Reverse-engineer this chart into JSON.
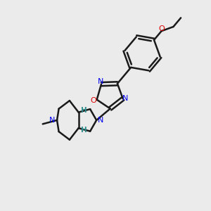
{
  "background_color": "#ebebeb",
  "bond_color": "#1a1a1a",
  "nitrogen_color": "#0000ee",
  "oxygen_color": "#dd0000",
  "stereo_h_color": "#2e8b8b",
  "line_width": 1.8,
  "figsize": [
    3.0,
    3.0
  ],
  "dpi": 100,
  "xlim": [
    0,
    10
  ],
  "ylim": [
    0,
    10
  ]
}
